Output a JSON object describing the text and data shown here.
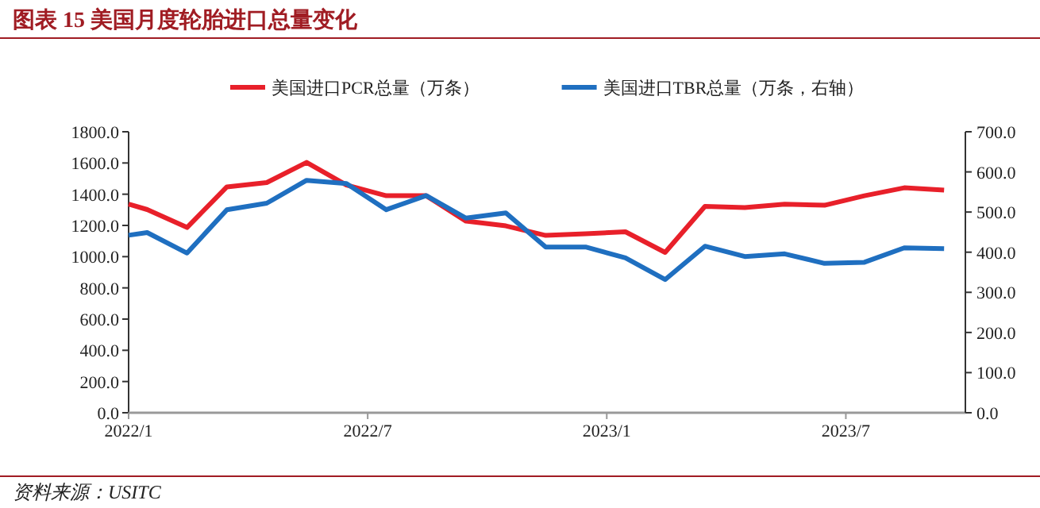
{
  "chart_data": {
    "type": "line",
    "title": "图表 15   美国月度轮胎进口总量变化",
    "annotations": [
      "资料来源：USITC"
    ],
    "x": [
      "2022-01-01",
      "2022-01-15",
      "2022-02-15",
      "2022-03-15",
      "2022-04-15",
      "2022-05-15",
      "2022-06-15",
      "2022-07-15",
      "2022-08-15",
      "2022-09-15",
      "2022-10-15",
      "2022-11-15",
      "2022-12-15",
      "2023-01-15",
      "2023-02-15",
      "2023-03-15",
      "2023-04-15",
      "2023-05-15",
      "2023-06-15",
      "2023-07-15",
      "2023-08-15",
      "2023-09-15"
    ],
    "series": [
      {
        "name": "美国进口PCR总量（万条）",
        "color": "#e8202a",
        "values": [
          1336,
          1302,
          1187,
          1447,
          1475,
          1604,
          1458,
          1390,
          1390,
          1227,
          1197,
          1136,
          1146,
          1159,
          1027,
          1322,
          1315,
          1336,
          1329,
          1390,
          1441,
          1427
        ]
      },
      {
        "name": "美国进口TBR总量（万条，右轴）",
        "color": "#1f6fc0",
        "axis": "y2",
        "values": [
          442,
          449,
          398,
          506,
          522,
          579,
          571,
          506,
          541,
          485,
          498,
          413,
          413,
          386,
          332,
          415,
          389,
          396,
          372,
          375,
          411,
          409
        ]
      }
    ],
    "xlim": [
      "2022-01-01",
      "2023-10-01"
    ],
    "xticks": [
      {
        "value": "2022-01-01",
        "label": "2022/1"
      },
      {
        "value": "2022-07-01",
        "label": "2022/7"
      },
      {
        "value": "2023-01-01",
        "label": "2023/1"
      },
      {
        "value": "2023-07-01",
        "label": "2023/7"
      }
    ],
    "ylim": [
      0,
      1800
    ],
    "yticks": [
      {
        "value": 0,
        "label": "0.0"
      },
      {
        "value": 200,
        "label": "200.0"
      },
      {
        "value": 400,
        "label": "400.0"
      },
      {
        "value": 600,
        "label": "600.0"
      },
      {
        "value": 800,
        "label": "800.0"
      },
      {
        "value": 1000,
        "label": "1000.0"
      },
      {
        "value": 1200,
        "label": "1200.0"
      },
      {
        "value": 1400,
        "label": "1400.0"
      },
      {
        "value": 1600,
        "label": "1600.0"
      },
      {
        "value": 1800,
        "label": "1800.0"
      }
    ],
    "y2lim": [
      0,
      700
    ],
    "y2ticks": [
      {
        "value": 0,
        "label": "0.0"
      },
      {
        "value": 100,
        "label": "100.0"
      },
      {
        "value": 200,
        "label": "200.0"
      },
      {
        "value": 300,
        "label": "300.0"
      },
      {
        "value": 400,
        "label": "400.0"
      },
      {
        "value": 500,
        "label": "500.0"
      },
      {
        "value": 600,
        "label": "600.0"
      },
      {
        "value": 700,
        "label": "700.0"
      }
    ],
    "legend": "top",
    "grid": false,
    "marker": "none",
    "line_style": "solid"
  }
}
